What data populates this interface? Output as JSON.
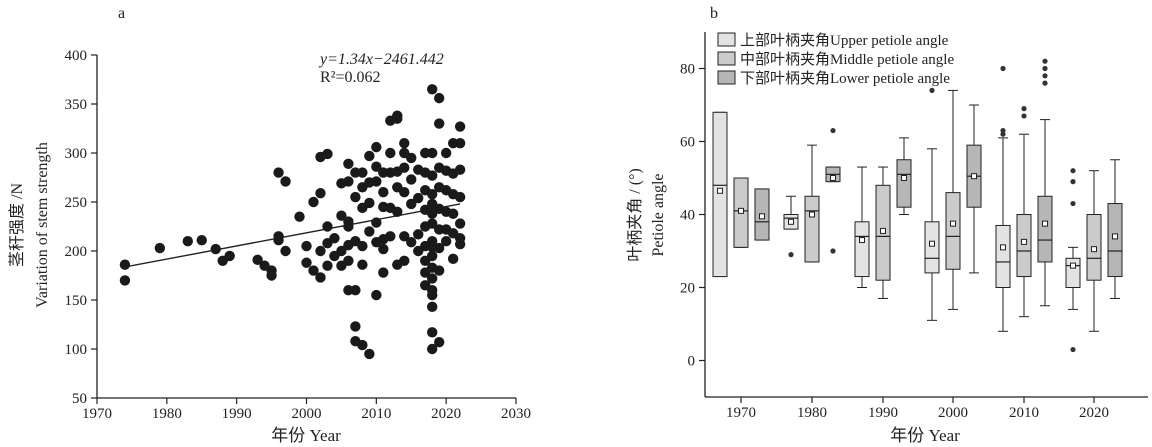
{
  "chart_data": [
    {
      "type": "scatter",
      "panel_label": "a",
      "xlabel": "年份 Year",
      "ylabel_cn": "茎秆强度 /N",
      "ylabel_en": "Variation of stem strength",
      "xlim": [
        1970,
        2030
      ],
      "ylim": [
        50,
        400
      ],
      "xticks": [
        1970,
        1980,
        1990,
        2000,
        2010,
        2020,
        2030
      ],
      "yticks": [
        50,
        100,
        150,
        200,
        250,
        300,
        350,
        400
      ],
      "annotation": {
        "equation": "y=1.34x−2461.442",
        "r2": "R²=0.062"
      },
      "trendline": {
        "slope": 1.34,
        "intercept": -2461.442,
        "x_range": [
          1974,
          2022
        ]
      },
      "points": [
        [
          1974,
          186
        ],
        [
          1974,
          170
        ],
        [
          1979,
          203
        ],
        [
          1983,
          210
        ],
        [
          1985,
          211
        ],
        [
          1987,
          202
        ],
        [
          1988,
          190
        ],
        [
          1989,
          195
        ],
        [
          1993,
          191
        ],
        [
          1994,
          185
        ],
        [
          1995,
          175
        ],
        [
          1995,
          180
        ],
        [
          1996,
          280
        ],
        [
          1996,
          215
        ],
        [
          1996,
          211
        ],
        [
          1997,
          271
        ],
        [
          1997,
          200
        ],
        [
          1999,
          235
        ],
        [
          2000,
          188
        ],
        [
          2000,
          205
        ],
        [
          2001,
          180
        ],
        [
          2001,
          250
        ],
        [
          2002,
          200
        ],
        [
          2002,
          173
        ],
        [
          2002,
          296
        ],
        [
          2002,
          259
        ],
        [
          2003,
          299
        ],
        [
          2003,
          225
        ],
        [
          2003,
          185
        ],
        [
          2003,
          208
        ],
        [
          2004,
          213
        ],
        [
          2004,
          195
        ],
        [
          2005,
          269
        ],
        [
          2005,
          236
        ],
        [
          2005,
          200
        ],
        [
          2005,
          185
        ],
        [
          2006,
          289
        ],
        [
          2006,
          271
        ],
        [
          2006,
          230
        ],
        [
          2006,
          206
        ],
        [
          2006,
          160
        ],
        [
          2006,
          190
        ],
        [
          2006,
          225
        ],
        [
          2007,
          280
        ],
        [
          2007,
          255
        ],
        [
          2007,
          210
        ],
        [
          2007,
          160
        ],
        [
          2007,
          123
        ],
        [
          2007,
          108
        ],
        [
          2008,
          280
        ],
        [
          2008,
          265
        ],
        [
          2008,
          244
        ],
        [
          2008,
          205
        ],
        [
          2008,
          186
        ],
        [
          2008,
          104
        ],
        [
          2009,
          297
        ],
        [
          2009,
          270
        ],
        [
          2009,
          249
        ],
        [
          2009,
          220
        ],
        [
          2009,
          95
        ],
        [
          2010,
          306
        ],
        [
          2010,
          286
        ],
        [
          2010,
          271
        ],
        [
          2010,
          229
        ],
        [
          2010,
          209
        ],
        [
          2010,
          155
        ],
        [
          2011,
          280
        ],
        [
          2011,
          260
        ],
        [
          2011,
          245
        ],
        [
          2011,
          212
        ],
        [
          2011,
          178
        ],
        [
          2011,
          202
        ],
        [
          2012,
          333
        ],
        [
          2012,
          300
        ],
        [
          2012,
          280
        ],
        [
          2012,
          244
        ],
        [
          2012,
          215
        ],
        [
          2013,
          338
        ],
        [
          2013,
          281
        ],
        [
          2013,
          265
        ],
        [
          2013,
          240
        ],
        [
          2013,
          186
        ],
        [
          2013,
          335
        ],
        [
          2014,
          310
        ],
        [
          2014,
          285
        ],
        [
          2014,
          260
        ],
        [
          2014,
          215
        ],
        [
          2014,
          190
        ],
        [
          2014,
          300
        ],
        [
          2015,
          273
        ],
        [
          2015,
          248
        ],
        [
          2015,
          209
        ],
        [
          2015,
          295
        ],
        [
          2016,
          283
        ],
        [
          2016,
          254
        ],
        [
          2016,
          217
        ],
        [
          2016,
          200
        ],
        [
          2017,
          280
        ],
        [
          2017,
          262
        ],
        [
          2017,
          242
        ],
        [
          2017,
          225
        ],
        [
          2017,
          205
        ],
        [
          2017,
          190
        ],
        [
          2017,
          178
        ],
        [
          2017,
          165
        ],
        [
          2017,
          300
        ],
        [
          2018,
          365
        ],
        [
          2018,
          300
        ],
        [
          2018,
          277
        ],
        [
          2018,
          258
        ],
        [
          2018,
          248
        ],
        [
          2018,
          238
        ],
        [
          2018,
          228
        ],
        [
          2018,
          210
        ],
        [
          2018,
          195
        ],
        [
          2018,
          183
        ],
        [
          2018,
          172
        ],
        [
          2018,
          160
        ],
        [
          2018,
          143
        ],
        [
          2018,
          117
        ],
        [
          2018,
          100
        ],
        [
          2018,
          155
        ],
        [
          2018,
          204
        ],
        [
          2019,
          356
        ],
        [
          2019,
          330
        ],
        [
          2019,
          285
        ],
        [
          2019,
          265
        ],
        [
          2019,
          243
        ],
        [
          2019,
          222
        ],
        [
          2019,
          203
        ],
        [
          2019,
          107
        ],
        [
          2019,
          180
        ],
        [
          2020,
          300
        ],
        [
          2020,
          282
        ],
        [
          2020,
          262
        ],
        [
          2020,
          240
        ],
        [
          2020,
          222
        ],
        [
          2020,
          210
        ],
        [
          2021,
          310
        ],
        [
          2021,
          279
        ],
        [
          2021,
          258
        ],
        [
          2021,
          238
        ],
        [
          2021,
          218
        ],
        [
          2021,
          192
        ],
        [
          2022,
          327
        ],
        [
          2022,
          310
        ],
        [
          2022,
          283
        ],
        [
          2022,
          255
        ],
        [
          2022,
          228
        ],
        [
          2022,
          207
        ],
        [
          2022,
          213
        ]
      ]
    },
    {
      "type": "box",
      "panel_label": "b",
      "xlabel": "年份 Year",
      "ylabel_cn": "叶柄夹角 / (°)",
      "ylabel_en": "Petiole angle",
      "ylim": [
        -10,
        90
      ],
      "yticks": [
        0,
        20,
        40,
        60,
        80
      ],
      "categories": [
        "1970",
        "1980",
        "1990",
        "2000",
        "2010",
        "2020"
      ],
      "series": [
        {
          "name": "上部叶柄夹角Upper petiole angle",
          "color": "#e3e3e3",
          "boxes": [
            {
              "q1": 23,
              "median": 48,
              "q3": 68,
              "whisker_low": 23,
              "whisker_high": 68,
              "mean": 46.5,
              "outliers": []
            },
            {
              "q1": 36,
              "median": 39,
              "q3": 40,
              "whisker_low": 36,
              "whisker_high": 45,
              "mean": 38,
              "outliers": [
                29
              ]
            },
            {
              "q1": 23,
              "median": 34,
              "q3": 38,
              "whisker_low": 20,
              "whisker_high": 53,
              "mean": 33,
              "outliers": []
            },
            {
              "q1": 24,
              "median": 28,
              "q3": 38,
              "whisker_low": 11,
              "whisker_high": 58,
              "mean": 32,
              "outliers": [
                74
              ]
            },
            {
              "q1": 20,
              "median": 27,
              "q3": 37,
              "whisker_low": 8,
              "whisker_high": 61,
              "mean": 31,
              "outliers": [
                63,
                62,
                80
              ]
            },
            {
              "q1": 20,
              "median": 26,
              "q3": 28,
              "whisker_low": 14,
              "whisker_high": 31,
              "mean": 26,
              "outliers": [
                43,
                49,
                52,
                3
              ]
            }
          ]
        },
        {
          "name": "中部叶柄夹角Middle petiole angle",
          "color": "#cbcbcb",
          "boxes": [
            {
              "q1": 31,
              "median": 41,
              "q3": 50,
              "whisker_low": 31,
              "whisker_high": 50,
              "mean": 41,
              "outliers": []
            },
            {
              "q1": 27,
              "median": 41,
              "q3": 45,
              "whisker_low": 27,
              "whisker_high": 59,
              "mean": 40,
              "outliers": []
            },
            {
              "q1": 22,
              "median": 34,
              "q3": 48,
              "whisker_low": 17,
              "whisker_high": 53,
              "mean": 35.5,
              "outliers": []
            },
            {
              "q1": 25,
              "median": 34,
              "q3": 46,
              "whisker_low": 14,
              "whisker_high": 74,
              "mean": 37.5,
              "outliers": []
            },
            {
              "q1": 23,
              "median": 30,
              "q3": 40,
              "whisker_low": 12,
              "whisker_high": 62,
              "mean": 32.5,
              "outliers": [
                67,
                69
              ]
            },
            {
              "q1": 22,
              "median": 28,
              "q3": 40,
              "whisker_low": 8,
              "whisker_high": 52,
              "mean": 30.5,
              "outliers": []
            }
          ]
        },
        {
          "name": "下部叶柄夹角Lower petiole angle",
          "color": "#b6b6b6",
          "boxes": [
            {
              "q1": 33,
              "median": 38,
              "q3": 47,
              "whisker_low": 33,
              "whisker_high": 47,
              "mean": 39.5,
              "outliers": []
            },
            {
              "q1": 49,
              "median": 51,
              "q3": 53,
              "whisker_low": 49,
              "whisker_high": 53,
              "mean": 50,
              "outliers": [
                63,
                30
              ]
            },
            {
              "q1": 42,
              "median": 51,
              "q3": 55,
              "whisker_low": 40,
              "whisker_high": 61,
              "mean": 50,
              "outliers": []
            },
            {
              "q1": 42,
              "median": 50.5,
              "q3": 59,
              "whisker_low": 24,
              "whisker_high": 70,
              "mean": 50.5,
              "outliers": []
            },
            {
              "q1": 27,
              "median": 33,
              "q3": 45,
              "whisker_low": 15,
              "whisker_high": 66,
              "mean": 37.5,
              "outliers": [
                76,
                78,
                80,
                82
              ]
            },
            {
              "q1": 23,
              "median": 30,
              "q3": 43,
              "whisker_low": 17,
              "whisker_high": 55,
              "mean": 34,
              "outliers": []
            }
          ]
        }
      ]
    }
  ]
}
